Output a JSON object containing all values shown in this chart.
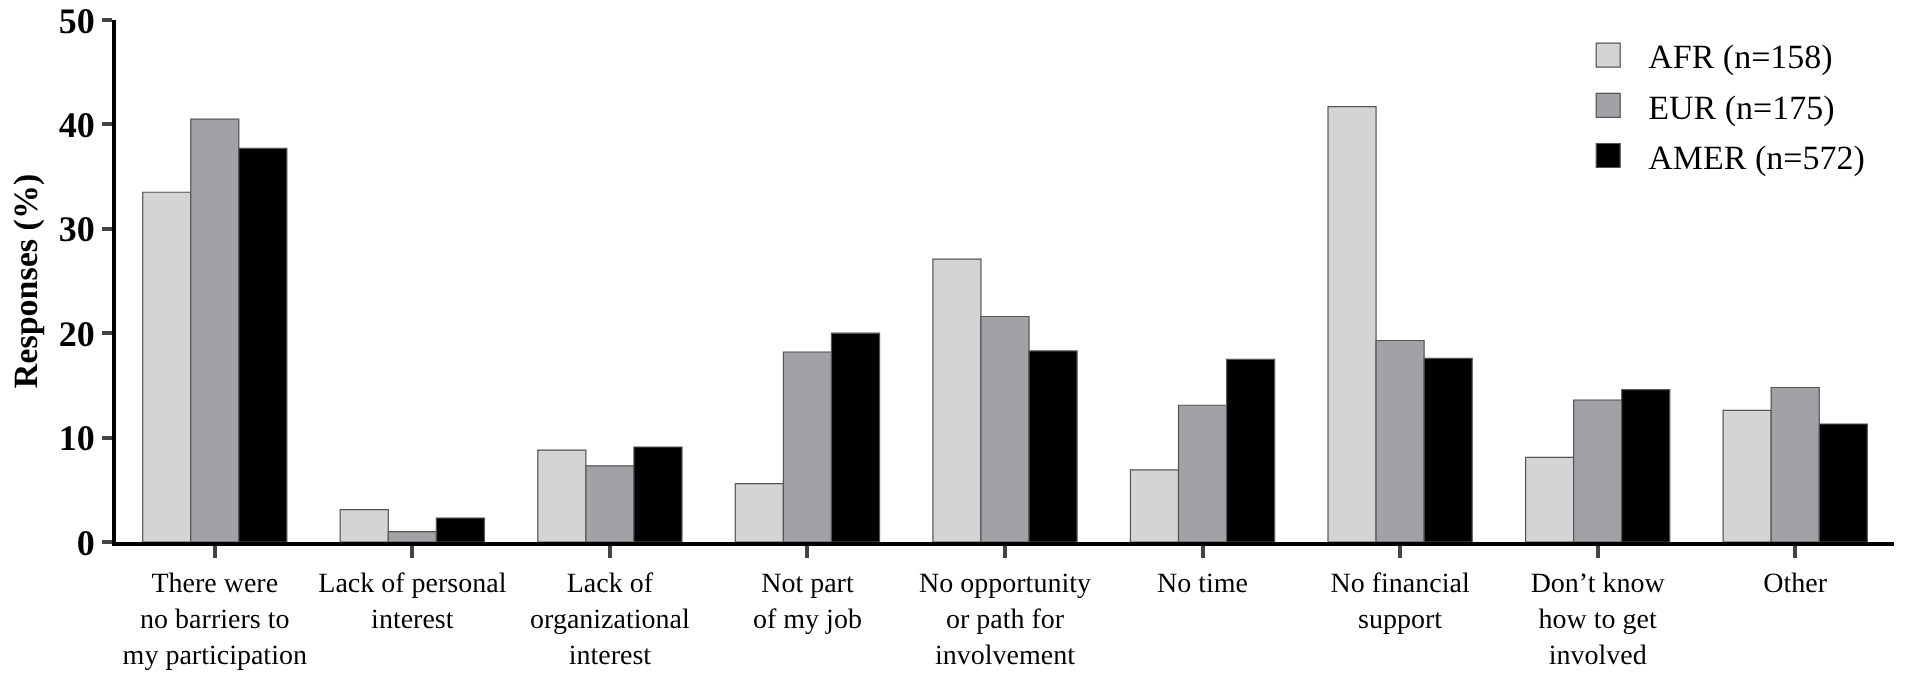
{
  "chart_data": {
    "type": "bar",
    "ylabel": "Responses (%)",
    "categories": [
      "There were\nno barriers to\nmy participation",
      "Lack of personal\ninterest",
      "Lack of\norganizational\ninterest",
      "Not part\nof my job",
      "No opportunity\nor path for\ninvolvement",
      "No time",
      "No financial\nsupport",
      "Don’t know\nhow to get\ninvolved",
      "Other"
    ],
    "series": [
      {
        "name": "AFR (n=158)",
        "color": "#d4d4d4",
        "values": [
          33.5,
          3.1,
          8.8,
          5.6,
          27.1,
          6.9,
          41.7,
          8.1,
          12.6
        ]
      },
      {
        "name": "EUR (n=175)",
        "color": "#a2a1a6",
        "values": [
          40.5,
          1.0,
          7.3,
          18.2,
          21.6,
          13.1,
          19.3,
          13.6,
          14.8
        ]
      },
      {
        "name": "AMER (n=572)",
        "color": "#000000",
        "values": [
          37.7,
          2.3,
          9.1,
          20.0,
          18.3,
          17.5,
          17.6,
          14.6,
          11.3
        ]
      }
    ],
    "ylim": [
      0,
      50
    ],
    "yticks": [
      0,
      10,
      20,
      30,
      40,
      50
    ],
    "grid": false,
    "legend": "top right"
  }
}
